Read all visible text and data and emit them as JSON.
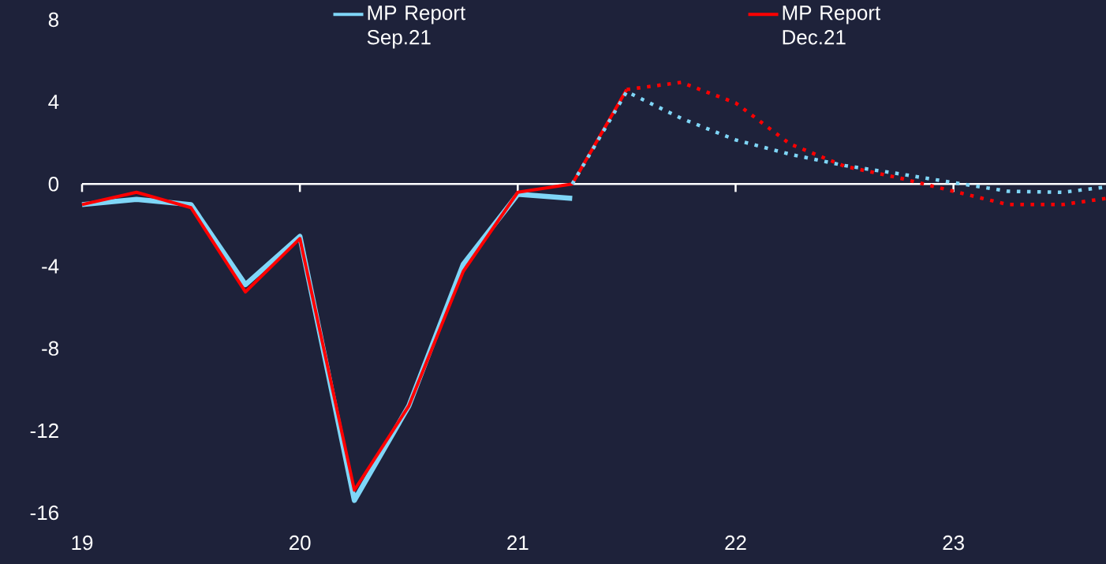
{
  "chart_data": {
    "type": "line",
    "xlim": [
      19,
      23.7
    ],
    "ylim": [
      -16,
      8
    ],
    "xticks": [
      19,
      20,
      21,
      22,
      23
    ],
    "yticks": [
      -16,
      -12,
      -8,
      -4,
      0,
      4,
      8
    ],
    "grid": false,
    "legend": "top",
    "marker": "none",
    "ref_lines": [
      {
        "axis": "y",
        "value": 0,
        "color": "#ffffff"
      }
    ],
    "series": [
      {
        "name": "MP Report Sep.21",
        "color": "#7fd6f7",
        "line_style": "solid",
        "x": [
          19,
          19.25,
          19.5,
          19.75,
          20,
          20.25,
          20.5,
          20.75,
          21,
          21.25
        ],
        "values": [
          -1.0,
          -0.75,
          -1.0,
          -4.9,
          -2.55,
          -15.4,
          -10.8,
          -3.9,
          -0.5,
          -0.7
        ]
      },
      {
        "name": "MP Report Dec.21",
        "color": "#ff0000",
        "line_style": "solid",
        "x": [
          19,
          19.25,
          19.5,
          19.75,
          20,
          20.25,
          20.5,
          20.75,
          21,
          21.25,
          21.5
        ],
        "values": [
          -1.0,
          -0.4,
          -1.15,
          -5.25,
          -2.65,
          -14.9,
          -10.8,
          -4.25,
          -0.4,
          0.0,
          4.6
        ]
      },
      {
        "color": "#7fd6f7",
        "line_style": "dotted",
        "x": [
          21.25,
          21.5,
          21.75,
          22,
          22.25,
          22.5,
          22.75,
          23,
          23.25,
          23.5,
          23.7
        ],
        "values": [
          0.0,
          4.5,
          3.2,
          2.15,
          1.45,
          0.9,
          0.5,
          0.07,
          -0.35,
          -0.4,
          -0.15
        ]
      },
      {
        "color": "#ff0000",
        "line_style": "dotted",
        "x": [
          21.5,
          21.75,
          22,
          22.25,
          22.5,
          22.75,
          23,
          23.25,
          23.5,
          23.7
        ],
        "values": [
          4.6,
          4.95,
          3.95,
          1.95,
          0.87,
          0.3,
          -0.35,
          -1.0,
          -1.0,
          -0.7
        ]
      }
    ]
  }
}
